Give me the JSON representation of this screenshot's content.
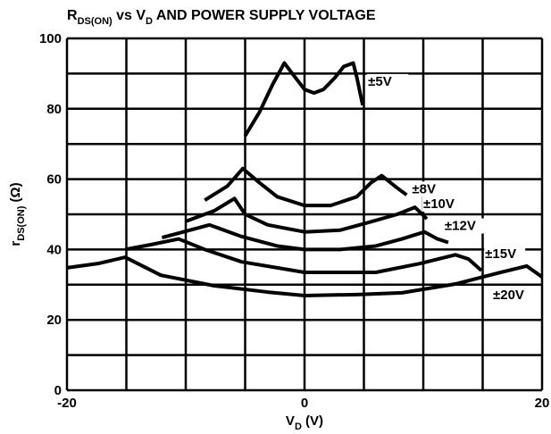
{
  "chart_data": {
    "type": "line",
    "title": [
      "R",
      "DS(ON)",
      " vs V",
      "D",
      " AND POWER SUPPLY VOLTAGE"
    ],
    "x_label": [
      "V",
      "D",
      " (V)"
    ],
    "y_label": [
      "r",
      "DS(ON)",
      " (Ω)"
    ],
    "xlim": [
      -20,
      20
    ],
    "ylim": [
      0,
      100
    ],
    "xticks": [
      -20,
      0,
      20
    ],
    "yticks": [
      0,
      20,
      40,
      60,
      80,
      100
    ],
    "xgrid": [
      -20,
      -15,
      -10,
      -5,
      0,
      5,
      10,
      15,
      20
    ],
    "ygrid": [
      0,
      10,
      20,
      30,
      40,
      50,
      60,
      70,
      80,
      90,
      100
    ],
    "color": "#000000",
    "series": [
      {
        "name": "±5V",
        "x": [
          -5,
          -3.8,
          -2.7,
          -1.7,
          -0.8,
          0,
          0.8,
          1.6,
          2.6,
          3.3,
          4.1,
          4.4,
          4.9
        ],
        "values": [
          72.3,
          79,
          86.8,
          93,
          89,
          85.5,
          84.5,
          85.5,
          89,
          92,
          93,
          89,
          81
        ]
      },
      {
        "name": "±8V",
        "x": [
          -8.4,
          -6.5,
          -5.2,
          -3.8,
          -2.3,
          0,
          2.2,
          4.4,
          5.6,
          6.5,
          7.8,
          8.6
        ],
        "values": [
          54,
          58,
          63,
          59,
          55,
          52.5,
          52.5,
          55,
          59,
          61,
          57.5,
          55.5
        ]
      },
      {
        "name": "±10V",
        "x": [
          -10,
          -7.6,
          -5.9,
          -5,
          -3.1,
          0,
          3,
          5.2,
          7.8,
          9.3,
          10.3
        ],
        "values": [
          48,
          51,
          54.5,
          50,
          47,
          45,
          45.5,
          47.5,
          50,
          52,
          48.7
        ]
      },
      {
        "name": "±12V",
        "x": [
          -12,
          -10.2,
          -8,
          -5.3,
          -2.3,
          0,
          3,
          6,
          8.2,
          10.1,
          11.2,
          12.1
        ],
        "values": [
          43.4,
          45,
          47,
          43.7,
          41,
          40,
          40,
          41,
          43,
          45,
          43,
          42
        ]
      },
      {
        "name": "±15V",
        "x": [
          -15.1,
          -12.9,
          -10.6,
          -8.4,
          -5.3,
          0,
          6,
          9.7,
          12.7,
          13.8,
          14.9
        ],
        "values": [
          40,
          41.4,
          43,
          40,
          36.5,
          33.5,
          33.5,
          36,
          38.5,
          37.3,
          34
        ]
      },
      {
        "name": "±20V",
        "x": [
          -20,
          -17.4,
          -15.1,
          -12.1,
          -7.6,
          -3.1,
          0,
          4.4,
          8.2,
          12.7,
          16.5,
          18.7,
          20
        ],
        "values": [
          34.8,
          36,
          37.8,
          32.7,
          29.7,
          27.9,
          26.9,
          27.2,
          27.7,
          30.2,
          33.5,
          35.3,
          32.2
        ]
      }
    ]
  }
}
